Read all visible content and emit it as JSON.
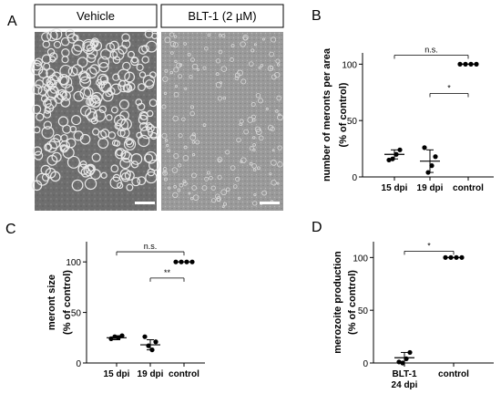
{
  "panel_labels": {
    "a": "A",
    "b": "B",
    "c": "C",
    "d": "D"
  },
  "micrographs": {
    "vehicle_label": "Vehicle",
    "treated_label": "BLT-1 (2 µM)"
  },
  "chart_data": [
    {
      "panel": "B",
      "type": "scatter",
      "ylabel_line1": "number of meronts per area",
      "ylabel_line2": "(% of control)",
      "categories": [
        "15 dpi",
        "19 dpi",
        "control"
      ],
      "yticks": [
        "0",
        "50",
        "100"
      ],
      "ylim": [
        0,
        110
      ],
      "points": [
        [
          15,
          24,
          20,
          16
        ],
        [
          26,
          18,
          10,
          4
        ],
        [
          100,
          100,
          100,
          100
        ]
      ],
      "means": [
        20,
        14,
        100
      ],
      "sd": [
        4,
        10,
        0
      ],
      "brackets": [
        {
          "from": 0,
          "to": 2,
          "y": 108,
          "text": "n.s."
        },
        {
          "from": 1,
          "to": 2,
          "y": 74,
          "text": "*"
        }
      ]
    },
    {
      "panel": "C",
      "type": "scatter",
      "ylabel_line1": "meront size",
      "ylabel_line2": "(% of control)",
      "categories": [
        "15 dpi",
        "19 dpi",
        "control"
      ],
      "yticks": [
        "0",
        "50",
        "100"
      ],
      "ylim": [
        0,
        120
      ],
      "points": [
        [
          24,
          27,
          25,
          26
        ],
        [
          26,
          21,
          13,
          17
        ],
        [
          100,
          100,
          100,
          100
        ]
      ],
      "means": [
        25,
        18,
        100
      ],
      "sd": [
        2,
        5,
        0
      ],
      "brackets": [
        {
          "from": 0,
          "to": 2,
          "y": 110,
          "text": "n.s."
        },
        {
          "from": 1,
          "to": 2,
          "y": 84,
          "text": "**"
        }
      ]
    },
    {
      "panel": "D",
      "type": "scatter",
      "ylabel_line1": "merozoite production",
      "ylabel_line2": "(% of control)",
      "categories": [
        "BLT-1",
        "control"
      ],
      "category_sublabels": [
        "24 dpi",
        ""
      ],
      "yticks": [
        "0",
        "50",
        "100"
      ],
      "ylim": [
        0,
        115
      ],
      "points": [
        [
          1,
          10,
          4,
          0
        ],
        [
          100,
          100,
          100,
          100
        ]
      ],
      "means": [
        5,
        100
      ],
      "sd": [
        5,
        0
      ],
      "brackets": [
        {
          "from": 0,
          "to": 1,
          "y": 106,
          "text": "*"
        }
      ]
    }
  ]
}
